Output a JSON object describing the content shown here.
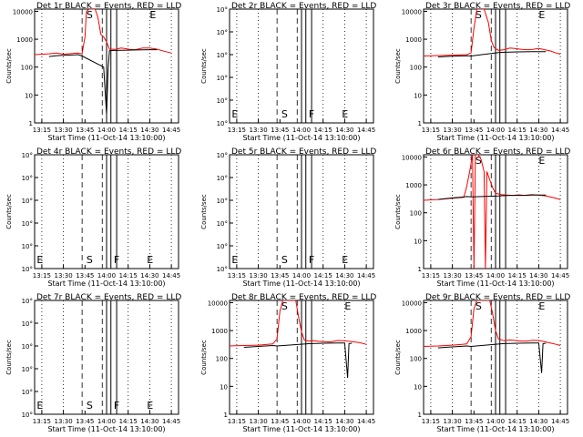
{
  "common": {
    "xlabel": "Start Time (11-Oct-14 13:10:00)",
    "ylabel": "Counts/sec",
    "x_ticks": [
      "13:15",
      "13:30",
      "13:45",
      "14:00",
      "14:15",
      "14:30",
      "14:45"
    ],
    "x_tick_minutes": [
      5,
      20,
      35,
      50,
      65,
      80,
      95
    ],
    "xlim_minutes": [
      0,
      100
    ],
    "colors": {
      "events": "#000000",
      "lld": "#ff0000",
      "frame": "#000000"
    }
  },
  "chart_data": [
    {
      "type": "line",
      "panel": "1r",
      "title": "Det 1r BLACK = Events, RED = LLD",
      "yscale": "log",
      "ylim": [
        1,
        12000
      ],
      "y_ticks": [
        "1",
        "10",
        "100",
        "1000",
        "10000"
      ],
      "letters": [
        "S",
        "F",
        "E"
      ],
      "series": [
        {
          "color": "#ff0000",
          "x": [
            0,
            10,
            15,
            20,
            30,
            33,
            35,
            36,
            38,
            42,
            44,
            46,
            48,
            50,
            52,
            56,
            60,
            63,
            66,
            70,
            75,
            80,
            85,
            90,
            95
          ],
          "y": [
            280,
            300,
            320,
            290,
            320,
            300,
            1200,
            10000,
            12000,
            12000,
            6000,
            1500,
            1200,
            800,
            440,
            430,
            480,
            460,
            430,
            420,
            480,
            480,
            440,
            370,
            320
          ]
        },
        {
          "color": "#000000",
          "x": [
            10,
            15,
            17,
            20,
            24,
            28,
            30,
            32,
            33,
            48,
            50,
            51,
            52,
            55,
            60,
            65,
            70,
            75,
            80,
            85
          ],
          "y": [
            240,
            255,
            260,
            265,
            270,
            275,
            280,
            260,
            250,
            100,
            2,
            80,
            390,
            395,
            400,
            405,
            410,
            415,
            420,
            420
          ]
        }
      ]
    },
    {
      "type": "line",
      "panel": "2r",
      "title": "Det 2r BLACK = Events, RED = LLD",
      "yscale": "log",
      "ylim": [
        1,
        10
      ],
      "y_ticks": [
        "10°",
        "10°",
        "10°",
        "10°",
        "10°",
        "10°"
      ],
      "letters": [
        "E",
        "S",
        "F",
        "E"
      ],
      "series": []
    },
    {
      "type": "line",
      "panel": "3r",
      "title": "Det 3r BLACK = Events, RED = LLD",
      "yscale": "log",
      "ylim": [
        1,
        12000
      ],
      "y_ticks": [
        "1",
        "10",
        "100",
        "1000",
        "10000"
      ],
      "letters": [
        "S",
        "E"
      ],
      "series": [
        {
          "color": "#ff0000",
          "x": [
            0,
            10,
            20,
            30,
            33,
            35,
            37,
            39,
            42,
            45,
            47,
            49,
            52,
            56,
            60,
            64,
            68,
            72,
            76,
            80,
            84,
            88,
            92,
            95
          ],
          "y": [
            250,
            260,
            270,
            280,
            320,
            2500,
            12000,
            12000,
            12000,
            4000,
            900,
            500,
            400,
            420,
            480,
            460,
            430,
            420,
            430,
            470,
            420,
            380,
            320,
            290
          ]
        },
        {
          "color": "#000000",
          "x": [
            10,
            15,
            20,
            25,
            30,
            33,
            52,
            56,
            60,
            65,
            70,
            75,
            80,
            85
          ],
          "y": [
            230,
            240,
            245,
            250,
            255,
            250,
            330,
            340,
            345,
            350,
            355,
            360,
            360,
            360
          ]
        }
      ]
    },
    {
      "type": "line",
      "panel": "4r",
      "title": "Det 4r BLACK = Events, RED = LLD",
      "yscale": "log",
      "ylim": [
        1,
        10
      ],
      "y_ticks": [
        "10°",
        "10°",
        "10°",
        "10°",
        "10°",
        "10°"
      ],
      "letters": [
        "E",
        "S",
        "F",
        "E"
      ],
      "series": []
    },
    {
      "type": "line",
      "panel": "5r",
      "title": "Det 5r BLACK = Events, RED = LLD",
      "yscale": "log",
      "ylim": [
        1,
        10
      ],
      "y_ticks": [
        "10°",
        "10°",
        "10°",
        "10°",
        "10°",
        "10°"
      ],
      "letters": [
        "E",
        "S",
        "F",
        "E"
      ],
      "series": []
    },
    {
      "type": "line",
      "panel": "6r",
      "title": "Det 6r BLACK = Events, RED = LLD",
      "yscale": "log",
      "ylim": [
        1,
        12000
      ],
      "y_ticks": [
        "1",
        "10",
        "100",
        "1000",
        "10000"
      ],
      "letters": [
        "S",
        "E"
      ],
      "series": [
        {
          "color": "#ff0000",
          "x": [
            0,
            10,
            20,
            28,
            30,
            32,
            34,
            35,
            36,
            37,
            38,
            40,
            42,
            43,
            44,
            46,
            48,
            50,
            54,
            58,
            62,
            66,
            70,
            75,
            80,
            85,
            90,
            95
          ],
          "y": [
            280,
            300,
            330,
            360,
            900,
            3000,
            12000,
            1,
            12000,
            12000,
            12000,
            8000,
            3000,
            1,
            3000,
            1500,
            800,
            500,
            450,
            430,
            420,
            440,
            420,
            450,
            430,
            400,
            350,
            300
          ]
        },
        {
          "color": "#000000",
          "x": [
            10,
            15,
            20,
            25,
            30,
            33,
            52,
            56,
            60,
            65,
            70,
            75,
            80,
            85
          ],
          "y": [
            300,
            320,
            340,
            360,
            380,
            370,
            400,
            410,
            420,
            420,
            420,
            430,
            430,
            430
          ]
        }
      ]
    },
    {
      "type": "line",
      "panel": "7r",
      "title": "Det 7r BLACK = Events, RED = LLD",
      "yscale": "log",
      "ylim": [
        1,
        10
      ],
      "y_ticks": [
        "10°",
        "10°",
        "10°",
        "10°",
        "10°",
        "10°"
      ],
      "letters": [
        "E",
        "S",
        "F",
        "E"
      ],
      "series": []
    },
    {
      "type": "line",
      "panel": "8r",
      "title": "Det 8r BLACK = Events, RED = LLD",
      "yscale": "log",
      "ylim": [
        1,
        12000
      ],
      "y_ticks": [
        "1",
        "10",
        "100",
        "1000",
        "10000"
      ],
      "letters": [
        "S",
        "E"
      ],
      "series": [
        {
          "color": "#ff0000",
          "x": [
            0,
            10,
            20,
            30,
            33,
            35,
            37,
            40,
            44,
            46,
            48,
            50,
            52,
            55,
            58,
            62,
            66,
            70,
            75,
            80,
            85,
            90,
            95
          ],
          "y": [
            280,
            290,
            300,
            330,
            500,
            5000,
            12000,
            12000,
            12000,
            12000,
            3000,
            900,
            450,
            420,
            430,
            410,
            400,
            390,
            440,
            430,
            400,
            370,
            320
          ]
        },
        {
          "color": "#000000",
          "x": [
            10,
            15,
            20,
            25,
            30,
            33,
            53,
            56,
            60,
            65,
            70,
            75,
            80,
            82,
            83,
            85
          ],
          "y": [
            250,
            260,
            270,
            280,
            290,
            280,
            330,
            340,
            345,
            350,
            355,
            360,
            360,
            20,
            340,
            350
          ]
        }
      ]
    },
    {
      "type": "line",
      "panel": "9r",
      "title": "Det 9r BLACK = Events, RED = LLD",
      "yscale": "log",
      "ylim": [
        1,
        12000
      ],
      "y_ticks": [
        "1",
        "10",
        "100",
        "1000",
        "10000"
      ],
      "letters": [
        "S",
        "E"
      ],
      "series": [
        {
          "color": "#ff0000",
          "x": [
            0,
            10,
            20,
            30,
            33,
            35,
            37,
            40,
            44,
            46,
            48,
            50,
            52,
            56,
            60,
            64,
            68,
            72,
            76,
            80,
            84,
            88,
            92,
            95
          ],
          "y": [
            270,
            280,
            300,
            330,
            600,
            6000,
            12000,
            12000,
            12000,
            12000,
            4000,
            1000,
            500,
            430,
            460,
            440,
            420,
            420,
            450,
            440,
            400,
            360,
            320,
            290
          ]
        },
        {
          "color": "#000000",
          "x": [
            10,
            15,
            20,
            25,
            30,
            33,
            53,
            56,
            60,
            65,
            70,
            75,
            80,
            82,
            83,
            85
          ],
          "y": [
            240,
            250,
            260,
            270,
            280,
            270,
            330,
            340,
            345,
            350,
            355,
            360,
            360,
            30,
            340,
            350
          ]
        }
      ]
    }
  ]
}
